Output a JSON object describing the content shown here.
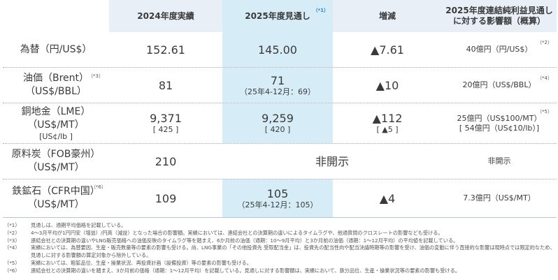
{
  "header": {
    "col_2024": "2024年度実績",
    "col_2025": "2025年度見通し",
    "col_2025_note": "（*1）",
    "col_diff": "増減",
    "col_impact_line1": "2025年度連結純利益見通し",
    "col_impact_line2": "に対する影響額（概算）"
  },
  "rows": [
    {
      "label": "為替（円/US$）",
      "v2024": "152.61",
      "v2025": "145.00",
      "diff": "▲7.61",
      "impact": "40億円（円/US$）",
      "impact_note": "（*2）"
    },
    {
      "label_line1": "油価（Brent）",
      "label_line2": "（US$/BBL）",
      "label_note": "（*3）",
      "v2024": "81",
      "v2025": "71",
      "v2025_sub": "（25年4-12月：69）",
      "diff": "▲10",
      "impact": "20億円（US$/BBL）",
      "impact_note": "（*4）"
    },
    {
      "label_line1": "銅地金（LME）",
      "label_line2": "（US$/MT）",
      "label_line3": "[US¢/lb ]",
      "v2024": "9,371",
      "v2024_sub": "[ 425 ]",
      "v2025": "9,259",
      "v2025_sub": "[ 420 ]",
      "diff": "▲112",
      "diff_sub": "[ ▲5 ]",
      "impact_line1": "25億円（US$100/MT）",
      "impact_line2": "[ 54億円（US¢10/lb）]",
      "impact_note": "（*5）"
    },
    {
      "label_line1": "原料炭（FOB豪州）",
      "label_line2": "（US$/MT）",
      "v2024": "210",
      "v2025": "非開示",
      "impact": "非開示"
    },
    {
      "label_line1": "鉄鉱石（CFR中国）",
      "label_line2": "（US$/MT）",
      "label_note": "（*6）",
      "v2024": "109",
      "v2025": "105",
      "v2025_sub": "（25年4-12月：105）",
      "diff": "▲4",
      "impact": "7.3億円（US$/MT）"
    }
  ],
  "notes": [
    {
      "key": "（*1）",
      "text": "見通しは、通期平均価格を記載している。"
    },
    {
      "key": "（*2）",
      "text": "4～3月平均が1円円安（増益）/円高（減益）となった場合の影響額。実績においては、連結会社との決算期の違いによるタイムラグや、他通貨間のクロスレートの影響なども受ける。"
    },
    {
      "key": "（*3）",
      "text": "連結会社との決算期の違いやLNG販売価格への油価反映のタイムラグ等を踏まえ、6か月前の油価（通期：10～9月平均）と3か月前の油価（通期：1～12月平均）の平均値を記載している。"
    },
    {
      "key": "（*4）",
      "text": "実績においては、為替要因、生産・販売数量等の要素の影響も受ける。尚、LNG事業の「その他投資先 受取配当金」は、投資先の配当性向や配当決議時期等の影響を受け、油価の変動に伴う直接的な影響は現時点では限定的なため、見通しに対する影響額の算定対象から除外している。"
    },
    {
      "key": "（*5）",
      "text": "実績においては、粗鉱品位、生産・操業状況、再投資計画（設備投資）等の要素の影響も受ける。"
    },
    {
      "key": "（*6）",
      "text": "連結会社との決算期の違いを踏まえ、3か月前の価格（通期：1～12月平均）を記載している。見通しに対する影響額は、実績において、鉄分品位、生産・操業状況等の要素の影響も受ける。"
    }
  ]
}
